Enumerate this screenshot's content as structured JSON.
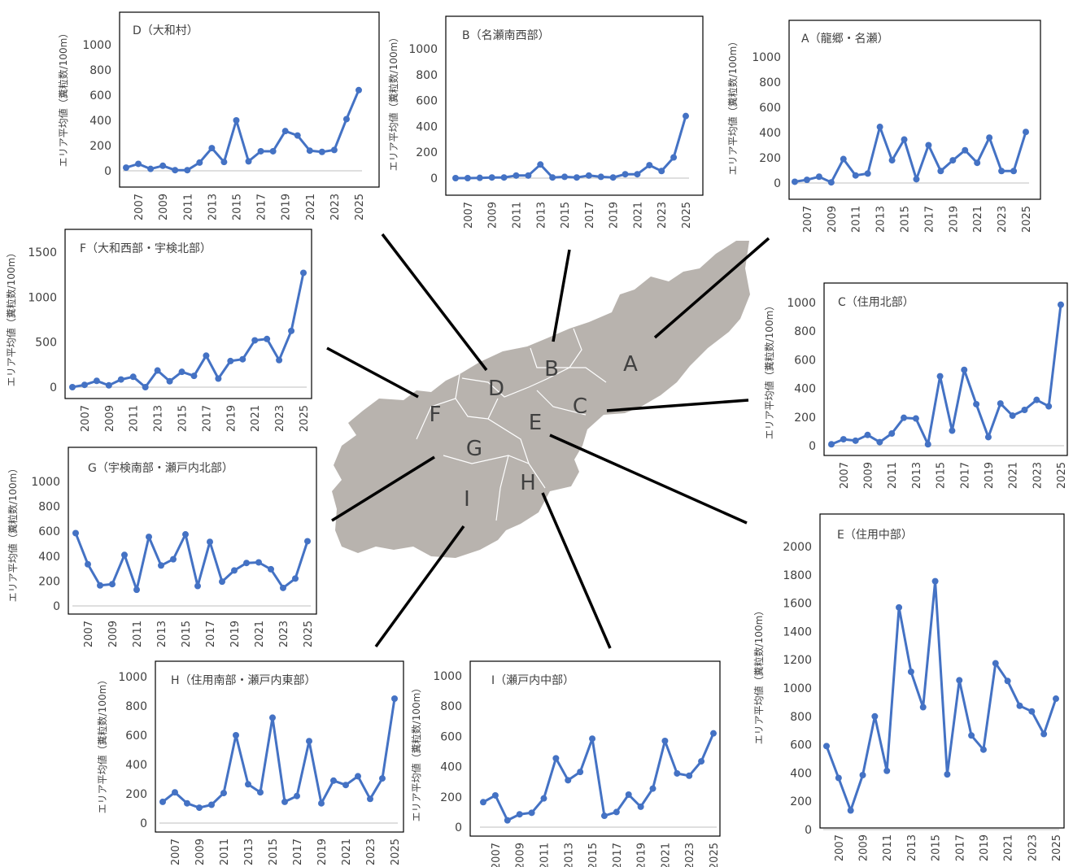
{
  "map": {
    "labels": [
      "A",
      "B",
      "C",
      "D",
      "E",
      "F",
      "G",
      "H",
      "I"
    ],
    "fill": "#b8b3ae",
    "line_color": "#000000"
  },
  "chart_style": {
    "series_color": "#4472c4",
    "axis_color": "#404040"
  },
  "chart_data": [
    {
      "id": "D",
      "type": "line",
      "title": "D（大和村）",
      "ylabel": "エリア平均値（糞粒数/100m）",
      "ylim": [
        0,
        1000
      ],
      "yticks": [
        0,
        200,
        400,
        600,
        800,
        1000
      ],
      "xticks": [
        "2007",
        "2009",
        "2011",
        "2013",
        "2015",
        "2017",
        "2019",
        "2021",
        "2023",
        "2025"
      ],
      "x": [
        2006,
        2007,
        2008,
        2009,
        2010,
        2011,
        2012,
        2013,
        2014,
        2015,
        2016,
        2017,
        2018,
        2019,
        2020,
        2021,
        2022,
        2023,
        2024,
        2025
      ],
      "values": [
        25,
        55,
        15,
        40,
        5,
        5,
        65,
        180,
        70,
        400,
        75,
        155,
        155,
        315,
        280,
        160,
        150,
        165,
        410,
        640
      ]
    },
    {
      "id": "B",
      "type": "line",
      "title": "B（名瀬南西部）",
      "ylabel": "エリア平均値（糞粒数/100m）",
      "ylim": [
        0,
        1000
      ],
      "yticks": [
        0,
        200,
        400,
        600,
        800,
        1000
      ],
      "xticks": [
        "2007",
        "2009",
        "2011",
        "2013",
        "2015",
        "2017",
        "2019",
        "2021",
        "2023",
        "2025"
      ],
      "x": [
        2006,
        2007,
        2008,
        2009,
        2010,
        2011,
        2012,
        2013,
        2014,
        2015,
        2016,
        2017,
        2018,
        2019,
        2020,
        2021,
        2022,
        2023,
        2024,
        2025
      ],
      "values": [
        0,
        0,
        2,
        5,
        5,
        20,
        20,
        105,
        5,
        10,
        5,
        20,
        10,
        5,
        30,
        30,
        100,
        55,
        160,
        480
      ]
    },
    {
      "id": "A",
      "type": "line",
      "title": "A（龍郷・名瀬）",
      "ylabel": "エリア平均値（糞粒数/100m）",
      "ylim": [
        0,
        1000
      ],
      "yticks": [
        0,
        200,
        400,
        600,
        800,
        1000
      ],
      "xticks": [
        "2007",
        "2009",
        "2011",
        "2013",
        "2015",
        "2017",
        "2019",
        "2021",
        "2023",
        "2025"
      ],
      "x": [
        2006,
        2007,
        2008,
        2009,
        2010,
        2011,
        2012,
        2013,
        2014,
        2015,
        2016,
        2017,
        2018,
        2019,
        2020,
        2021,
        2022,
        2023,
        2024,
        2025
      ],
      "values": [
        10,
        25,
        50,
        5,
        190,
        60,
        75,
        445,
        180,
        345,
        30,
        300,
        95,
        180,
        260,
        160,
        360,
        95,
        95,
        405
      ]
    },
    {
      "id": "F",
      "type": "line",
      "title": "F（大和西部・宇検北部）",
      "ylabel": "エリア平均値（糞粒数/100m）",
      "ylim": [
        0,
        1500
      ],
      "yticks": [
        0,
        500,
        1000,
        1500
      ],
      "xticks": [
        "2007",
        "2009",
        "2011",
        "2013",
        "2015",
        "2017",
        "2019",
        "2021",
        "2023",
        "2025"
      ],
      "x": [
        2006,
        2007,
        2008,
        2009,
        2010,
        2011,
        2012,
        2013,
        2014,
        2015,
        2016,
        2017,
        2018,
        2019,
        2020,
        2021,
        2022,
        2023,
        2024,
        2025
      ],
      "values": [
        0,
        25,
        70,
        20,
        85,
        115,
        0,
        185,
        65,
        170,
        125,
        350,
        95,
        290,
        310,
        520,
        535,
        300,
        625,
        1270
      ]
    },
    {
      "id": "C",
      "type": "line",
      "title": "C（住用北部）",
      "ylabel": "エリア平均値（糞粒数/100m）",
      "ylim": [
        0,
        1000
      ],
      "yticks": [
        0,
        200,
        400,
        600,
        800,
        1000
      ],
      "xticks": [
        "2007",
        "2009",
        "2011",
        "2013",
        "2015",
        "2017",
        "2019",
        "2021",
        "2023",
        "2025"
      ],
      "x": [
        2006,
        2007,
        2008,
        2009,
        2010,
        2011,
        2012,
        2013,
        2014,
        2015,
        2016,
        2017,
        2018,
        2019,
        2020,
        2021,
        2022,
        2023,
        2024,
        2025
      ],
      "values": [
        10,
        45,
        35,
        75,
        25,
        85,
        195,
        190,
        10,
        485,
        105,
        530,
        290,
        60,
        295,
        210,
        250,
        320,
        275,
        985
      ]
    },
    {
      "id": "G",
      "type": "line",
      "title": "G（宇検南部・瀬戸内北部）",
      "ylabel": "エリア平均値（糞粒数/100m）",
      "ylim": [
        0,
        1000
      ],
      "yticks": [
        0,
        200,
        400,
        600,
        800,
        1000
      ],
      "xticks": [
        "2007",
        "2009",
        "2011",
        "2013",
        "2015",
        "2017",
        "2019",
        "2021",
        "2023",
        "2025"
      ],
      "x": [
        2006,
        2007,
        2008,
        2009,
        2010,
        2011,
        2012,
        2013,
        2014,
        2015,
        2016,
        2017,
        2018,
        2019,
        2020,
        2021,
        2022,
        2023,
        2024,
        2025
      ],
      "values": [
        585,
        335,
        165,
        175,
        410,
        130,
        555,
        325,
        375,
        575,
        160,
        515,
        195,
        285,
        345,
        350,
        295,
        145,
        220,
        520
      ]
    },
    {
      "id": "E",
      "type": "line",
      "title": "E（住用中部）",
      "ylabel": "エリア平均値（糞粒数/100m）",
      "ylim": [
        0,
        2000
      ],
      "yticks": [
        0,
        200,
        400,
        600,
        800,
        1000,
        1200,
        1400,
        1600,
        1800,
        2000
      ],
      "xticks": [
        "2007",
        "2009",
        "2011",
        "2013",
        "2015",
        "2017",
        "2019",
        "2021",
        "2023",
        "2025"
      ],
      "x": [
        2006,
        2007,
        2008,
        2009,
        2010,
        2011,
        2012,
        2013,
        2014,
        2015,
        2016,
        2017,
        2018,
        2019,
        2020,
        2021,
        2022,
        2023,
        2024,
        2025
      ],
      "values": [
        590,
        365,
        135,
        385,
        800,
        415,
        1570,
        1115,
        865,
        1755,
        390,
        1055,
        665,
        565,
        1175,
        1050,
        875,
        835,
        675,
        925
      ]
    },
    {
      "id": "H",
      "type": "line",
      "title": "H（住用南部・瀬戸内東部）",
      "ylabel": "エリア平均値（糞粒数/100m）",
      "ylim": [
        0,
        1000
      ],
      "yticks": [
        0,
        200,
        400,
        600,
        800,
        1000
      ],
      "xticks": [
        "2007",
        "2009",
        "2011",
        "2013",
        "2015",
        "2017",
        "2019",
        "2021",
        "2023",
        "2025"
      ],
      "x": [
        2006,
        2007,
        2008,
        2009,
        2010,
        2011,
        2012,
        2013,
        2014,
        2015,
        2016,
        2017,
        2018,
        2019,
        2020,
        2021,
        2022,
        2023,
        2024,
        2025
      ],
      "values": [
        145,
        210,
        135,
        105,
        125,
        205,
        600,
        265,
        210,
        720,
        145,
        185,
        560,
        135,
        290,
        260,
        320,
        165,
        305,
        850
      ]
    },
    {
      "id": "I",
      "type": "line",
      "title": "I（瀬戸内中部）",
      "ylabel": "エリア平均値（糞粒数/100m）",
      "ylim": [
        0,
        1000
      ],
      "yticks": [
        0,
        200,
        400,
        600,
        800,
        1000
      ],
      "xticks": [
        "2007",
        "2009",
        "2011",
        "2013",
        "2015",
        "2017",
        "2019",
        "2021",
        "2023",
        "2025"
      ],
      "x": [
        2006,
        2007,
        2008,
        2009,
        2010,
        2011,
        2012,
        2013,
        2014,
        2015,
        2016,
        2017,
        2018,
        2019,
        2020,
        2021,
        2022,
        2023,
        2024,
        2025
      ],
      "values": [
        165,
        210,
        45,
        85,
        95,
        190,
        455,
        310,
        365,
        585,
        75,
        100,
        215,
        135,
        255,
        570,
        355,
        340,
        435,
        620
      ]
    }
  ]
}
